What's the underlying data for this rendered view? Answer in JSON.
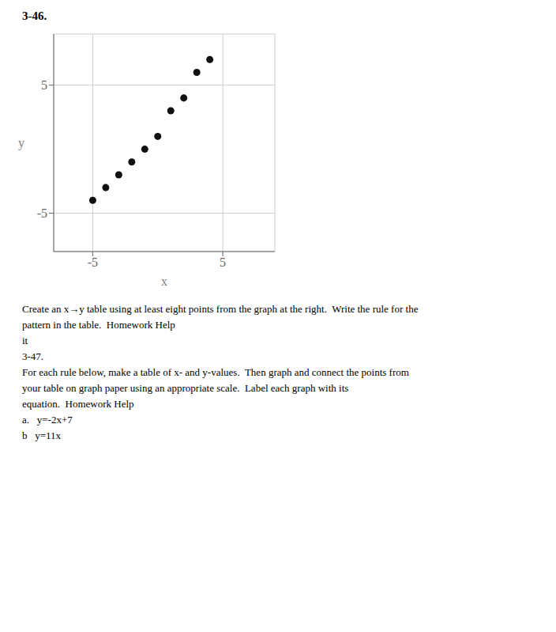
{
  "chart_data": {
    "type": "scatter",
    "title": "3-46.",
    "x": [
      -5,
      -4,
      -3,
      -2,
      -1,
      0,
      1,
      2,
      3,
      4
    ],
    "values": [
      -4,
      -3,
      -2,
      -1,
      0,
      1,
      3,
      4,
      6,
      7
    ],
    "xlim": [
      -8,
      9
    ],
    "ylim": [
      -8,
      9
    ],
    "xticks": [
      -5,
      5
    ],
    "yticks": [
      -5,
      5
    ],
    "xlabel": "x",
    "ylabel": "y",
    "grid": true,
    "color": "#111111",
    "marker": "circle",
    "annotations": [
      "Create an x→y table using at least eight points from the graph at the right.  Write the rule for the",
      "pattern in the table.  Homework Help",
      "it",
      "3-47.",
      "For each rule below, make a table of x- and y-values.  Then graph and connect the points from",
      "your table on graph paper using an appropriate scale.  Label each graph with its",
      "equation.  Homework Help",
      "a.   y=-2x+7",
      "b   y=11x"
    ]
  }
}
